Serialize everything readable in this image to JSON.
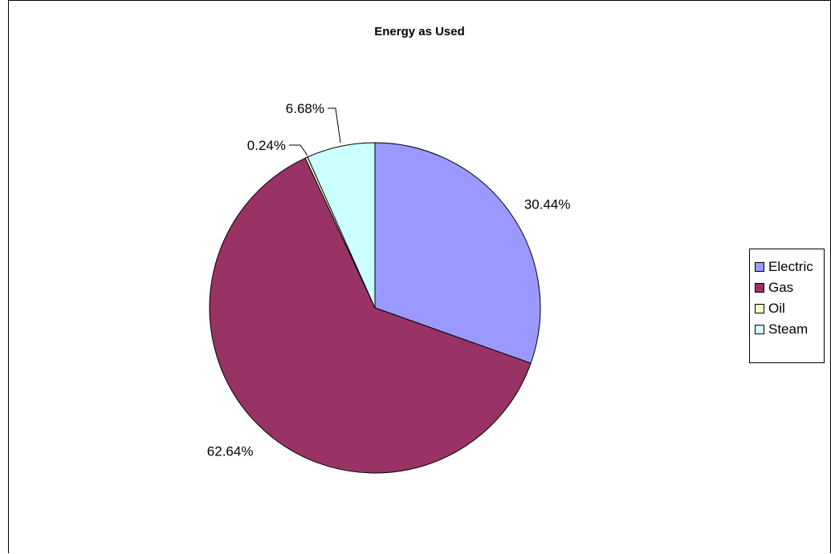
{
  "chart_data": {
    "type": "pie",
    "title": "Energy as Used",
    "legend_position": "right",
    "categories": [
      "Electric",
      "Gas",
      "Oil",
      "Steam"
    ],
    "values": [
      30.44,
      62.64,
      0.24,
      6.68
    ],
    "labels": [
      "30.44%",
      "62.64%",
      "0.24%",
      "6.68%"
    ],
    "colors": [
      "#9999ff",
      "#993366",
      "#ffffcc",
      "#ccffff"
    ]
  }
}
